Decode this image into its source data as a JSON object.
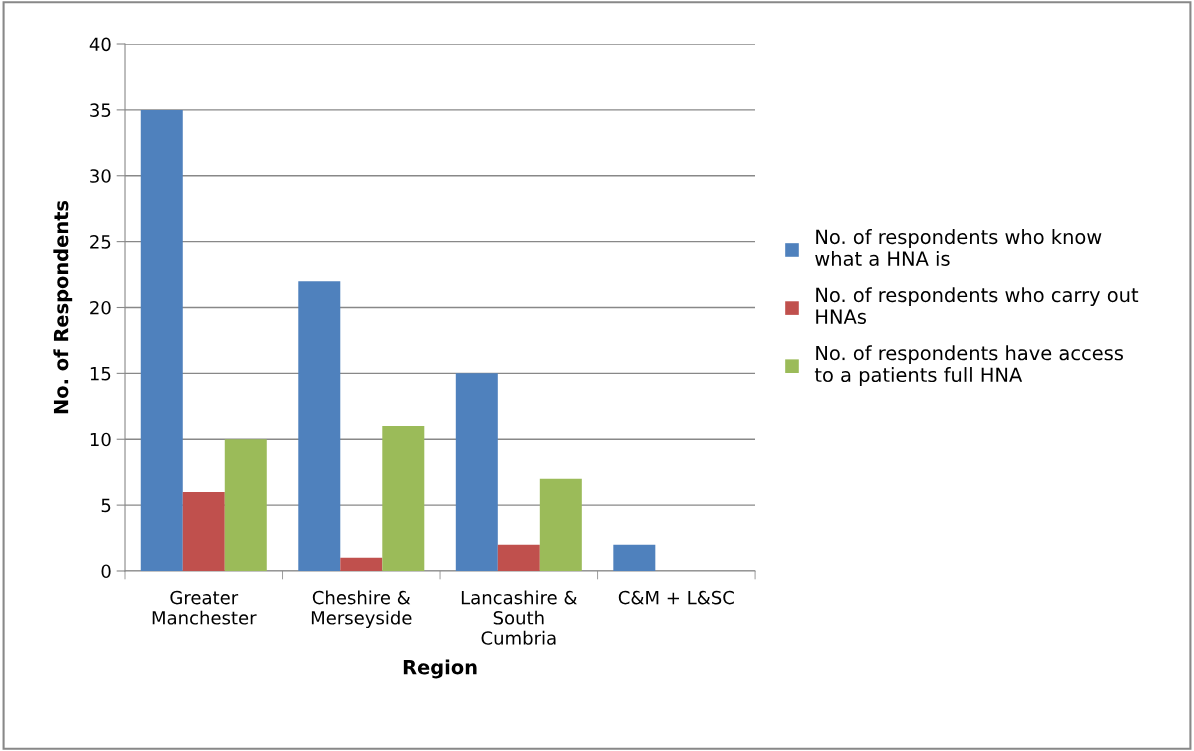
{
  "chart_data": {
    "type": "bar",
    "xlabel": "Region",
    "ylabel": "No. of Respondents",
    "categories": [
      "Greater\nManchester",
      "Cheshire &\nMerseyside",
      "Lancashire &\nSouth\nCumbria",
      "C&M + L&SC"
    ],
    "series": [
      {
        "name": "No. of respondents who know\nwhat a HNA is",
        "color": "#4f81bd",
        "values": [
          35,
          22,
          15,
          2
        ]
      },
      {
        "name": "No. of respondents who carry out\nHNAs",
        "color": "#c0504d",
        "values": [
          6,
          1,
          2,
          0
        ]
      },
      {
        "name": "No. of respondents have access\nto a patients full HNA",
        "color": "#9bbb59",
        "values": [
          10,
          11,
          7,
          0
        ]
      }
    ],
    "ylim": [
      0,
      40
    ],
    "yticks": [
      0,
      5,
      10,
      15,
      20,
      25,
      30,
      35,
      40
    ],
    "grid": "y",
    "legend": "right"
  }
}
